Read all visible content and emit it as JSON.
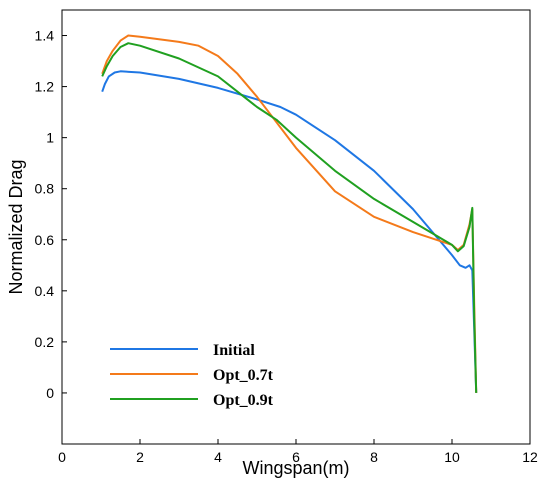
{
  "chart_data": {
    "type": "line",
    "title": "",
    "xlabel": "Wingspan(m)",
    "ylabel": "Normalized Drag",
    "xlim": [
      0,
      12
    ],
    "ylim": [
      -0.2,
      1.5
    ],
    "xticks": [
      0,
      2,
      4,
      6,
      8,
      10,
      12
    ],
    "xtick_labels": [
      "0",
      "2",
      "4",
      "6",
      "8",
      "10",
      "12"
    ],
    "yticks": [
      0,
      0.2,
      0.4,
      0.6,
      0.8,
      1,
      1.2,
      1.4
    ],
    "ytick_labels": [
      "0",
      "0.2",
      "0.4",
      "0.6",
      "0.8",
      "1",
      "1.2",
      "1.4"
    ],
    "grid": false,
    "legend_position": "bottom-left",
    "series": [
      {
        "name": "Initial",
        "color": "#1f77e4",
        "x": [
          1.03,
          1.1,
          1.2,
          1.35,
          1.5,
          2,
          3,
          4,
          5,
          5.6,
          6,
          7,
          8,
          9,
          9.5,
          10,
          10.2,
          10.35,
          10.45,
          10.52,
          10.57,
          10.62
        ],
        "y": [
          1.18,
          1.21,
          1.24,
          1.255,
          1.26,
          1.255,
          1.23,
          1.195,
          1.15,
          1.12,
          1.09,
          0.99,
          0.87,
          0.72,
          0.63,
          0.54,
          0.5,
          0.49,
          0.5,
          0.48,
          0.25,
          0.0
        ]
      },
      {
        "name": "Opt_0.7t",
        "color": "#f47a1a",
        "x": [
          1.03,
          1.15,
          1.3,
          1.5,
          1.7,
          2,
          3,
          3.5,
          4,
          4.5,
          5,
          5.5,
          6,
          7,
          8,
          9,
          10,
          10.15,
          10.3,
          10.45,
          10.52,
          10.57,
          10.62
        ],
        "y": [
          1.25,
          1.3,
          1.34,
          1.38,
          1.4,
          1.395,
          1.375,
          1.36,
          1.32,
          1.25,
          1.16,
          1.06,
          0.96,
          0.79,
          0.69,
          0.63,
          0.58,
          0.56,
          0.58,
          0.66,
          0.72,
          0.35,
          0.0
        ]
      },
      {
        "name": "Opt_0.9t",
        "color": "#20a020",
        "x": [
          1.03,
          1.15,
          1.3,
          1.5,
          1.7,
          2,
          3,
          4,
          4.5,
          5,
          5.5,
          6,
          7,
          8,
          9,
          10,
          10.15,
          10.3,
          10.45,
          10.52,
          10.57,
          10.62
        ],
        "y": [
          1.24,
          1.28,
          1.32,
          1.355,
          1.37,
          1.36,
          1.31,
          1.24,
          1.18,
          1.12,
          1.07,
          1.0,
          0.87,
          0.76,
          0.67,
          0.58,
          0.555,
          0.575,
          0.65,
          0.725,
          0.3,
          0.0
        ]
      }
    ]
  }
}
